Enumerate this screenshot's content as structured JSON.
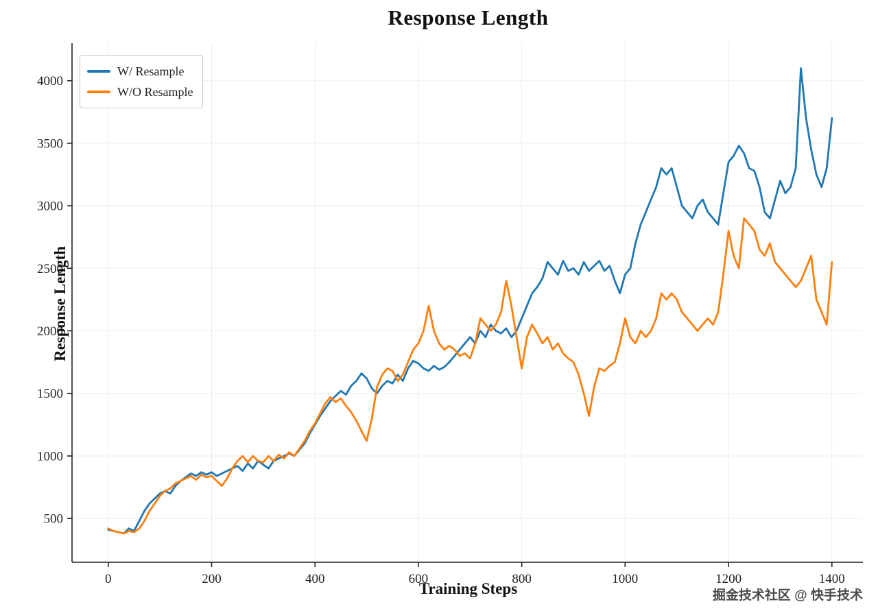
{
  "watermark": "掘金技术社区 @ 快手技术",
  "chart_data": {
    "type": "line",
    "title": "Response Length",
    "xlabel": "Training Steps",
    "ylabel": "Response Length",
    "xlim": [
      -70,
      1460
    ],
    "ylim": [
      150,
      4300
    ],
    "xticks": [
      0,
      200,
      400,
      600,
      800,
      1000,
      1200,
      1400
    ],
    "yticks": [
      500,
      1000,
      1500,
      2000,
      2500,
      3000,
      3500,
      4000
    ],
    "grid": true,
    "legend_position": "upper left",
    "x": [
      0,
      10,
      20,
      30,
      40,
      50,
      60,
      70,
      80,
      90,
      100,
      110,
      120,
      130,
      140,
      150,
      160,
      170,
      180,
      190,
      200,
      210,
      220,
      230,
      240,
      250,
      260,
      270,
      280,
      290,
      300,
      310,
      320,
      330,
      340,
      350,
      360,
      370,
      380,
      390,
      400,
      410,
      420,
      430,
      440,
      450,
      460,
      470,
      480,
      490,
      500,
      510,
      520,
      530,
      540,
      550,
      560,
      570,
      580,
      590,
      600,
      610,
      620,
      630,
      640,
      650,
      660,
      670,
      680,
      690,
      700,
      710,
      720,
      730,
      740,
      750,
      760,
      770,
      780,
      790,
      800,
      810,
      820,
      830,
      840,
      850,
      860,
      870,
      880,
      890,
      900,
      910,
      920,
      930,
      940,
      950,
      960,
      970,
      980,
      990,
      1000,
      1010,
      1020,
      1030,
      1040,
      1050,
      1060,
      1070,
      1080,
      1090,
      1100,
      1110,
      1120,
      1130,
      1140,
      1150,
      1160,
      1170,
      1180,
      1190,
      1200,
      1210,
      1220,
      1230,
      1240,
      1250,
      1260,
      1270,
      1280,
      1290,
      1300,
      1310,
      1320,
      1330,
      1340,
      1350,
      1360,
      1370,
      1380,
      1390,
      1400
    ],
    "series": [
      {
        "name": "W/ Resample",
        "color": "#1f77b4",
        "values": [
          410,
          400,
          390,
          380,
          420,
          400,
          480,
          560,
          620,
          660,
          700,
          720,
          700,
          760,
          800,
          830,
          860,
          840,
          870,
          850,
          870,
          840,
          860,
          880,
          900,
          920,
          880,
          940,
          900,
          960,
          930,
          900,
          960,
          980,
          1000,
          1020,
          1000,
          1050,
          1100,
          1180,
          1250,
          1320,
          1380,
          1440,
          1480,
          1520,
          1490,
          1560,
          1600,
          1660,
          1620,
          1540,
          1500,
          1560,
          1600,
          1580,
          1650,
          1600,
          1700,
          1760,
          1740,
          1700,
          1680,
          1720,
          1690,
          1710,
          1750,
          1800,
          1850,
          1900,
          1950,
          1900,
          2000,
          1950,
          2050,
          2000,
          1980,
          2020,
          1950,
          2000,
          2100,
          2200,
          2300,
          2350,
          2420,
          2550,
          2500,
          2450,
          2560,
          2480,
          2500,
          2450,
          2550,
          2480,
          2520,
          2560,
          2480,
          2520,
          2400,
          2300,
          2450,
          2500,
          2700,
          2850,
          2950,
          3050,
          3150,
          3300,
          3250,
          3300,
          3150,
          3000,
          2950,
          2900,
          3000,
          3050,
          2950,
          2900,
          2850,
          3100,
          3350,
          3400,
          3480,
          3420,
          3300,
          3280,
          3150,
          2950,
          2900,
          3050,
          3200,
          3100,
          3150,
          3300,
          4100,
          3700,
          3450,
          3250,
          3150,
          3300,
          3700
        ]
      },
      {
        "name": "W/O Resample",
        "color": "#ff7f0e",
        "values": [
          420,
          400,
          390,
          380,
          400,
          390,
          420,
          480,
          560,
          620,
          680,
          720,
          740,
          780,
          800,
          820,
          840,
          810,
          850,
          830,
          840,
          800,
          760,
          820,
          900,
          960,
          1000,
          950,
          1000,
          960,
          950,
          1000,
          960,
          1010,
          980,
          1030,
          1000,
          1060,
          1120,
          1200,
          1260,
          1340,
          1420,
          1470,
          1430,
          1460,
          1400,
          1350,
          1280,
          1200,
          1120,
          1300,
          1550,
          1650,
          1700,
          1680,
          1600,
          1650,
          1750,
          1850,
          1900,
          2000,
          2200,
          2000,
          1900,
          1850,
          1880,
          1850,
          1800,
          1820,
          1780,
          1900,
          2100,
          2050,
          2000,
          2050,
          2150,
          2400,
          2200,
          1950,
          1700,
          1950,
          2050,
          1980,
          1900,
          1950,
          1850,
          1900,
          1820,
          1780,
          1750,
          1650,
          1500,
          1320,
          1550,
          1700,
          1680,
          1720,
          1750,
          1900,
          2100,
          1950,
          1900,
          2000,
          1950,
          2000,
          2100,
          2300,
          2250,
          2300,
          2250,
          2150,
          2100,
          2050,
          2000,
          2050,
          2100,
          2050,
          2150,
          2450,
          2800,
          2600,
          2500,
          2900,
          2850,
          2800,
          2650,
          2600,
          2700,
          2550,
          2500,
          2450,
          2400,
          2350,
          2400,
          2500,
          2600,
          2250,
          2150,
          2050,
          2550
        ]
      }
    ]
  }
}
